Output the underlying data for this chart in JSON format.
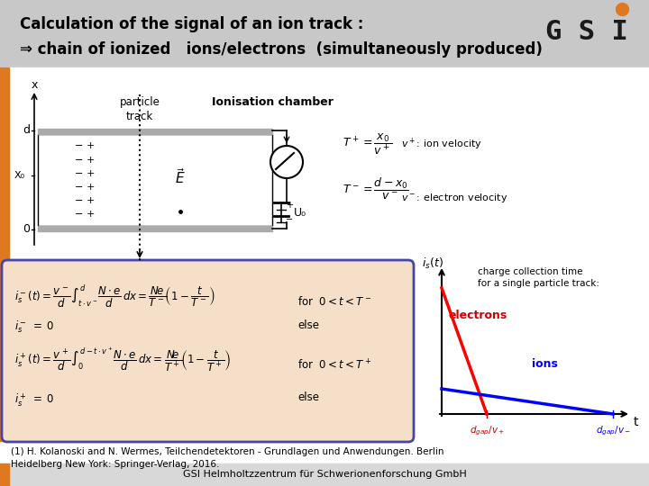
{
  "title_line1": "Calculation of the signal of an ion track :",
  "title_line2": "⇒ chain of ionized   ions/electrons  (simultaneously produced)",
  "bg_color": "#ffffff",
  "header_bar_color": "#c8c8c8",
  "orange_bar_color": "#e07820",
  "footer_bar_color": "#d8d8d8",
  "footer_text": "GSI Helmholtzzentrum für Schwerionenforschung GmbH",
  "reference_text": "(1) H. Kolanoski and N. Wermes, Teilchendetektoren - Grundlagen und Anwendungen. Berlin\nHeidelberg New York: Springer-Verlag, 2016.",
  "formula_box_color": "#f5dfc8",
  "formula_box_edge": "#4444aa",
  "charge_collection_text": "charge collection time\nfor a single particle track:",
  "particle_track_label": "particle\ntrack",
  "ionisation_chamber_label": "Ionisation chamber",
  "gsi_logo_color": "#1a1a1a",
  "gsi_dot_color": "#e07820"
}
